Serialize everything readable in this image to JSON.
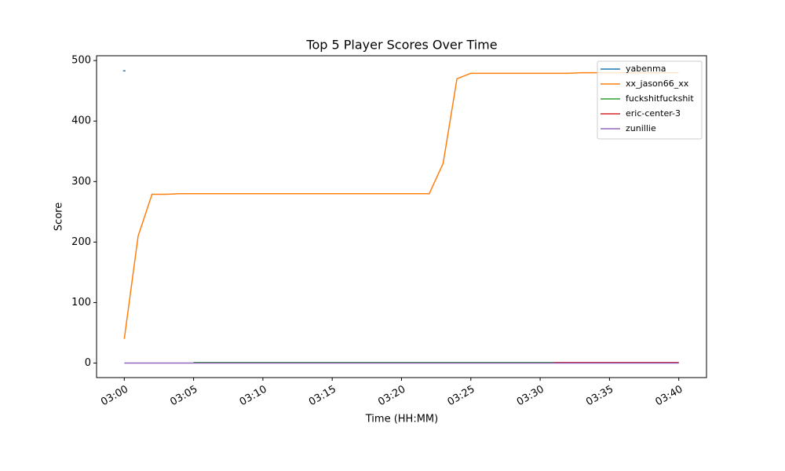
{
  "chart_data": {
    "type": "line",
    "title": "Top 5 Player Scores Over Time",
    "x_label": "Time (HH:MM)",
    "y_label": "Score",
    "x": [
      "03:00",
      "03:01",
      "03:02",
      "03:03",
      "03:04",
      "03:05",
      "03:06",
      "03:07",
      "03:08",
      "03:09",
      "03:10",
      "03:11",
      "03:12",
      "03:13",
      "03:14",
      "03:15",
      "03:16",
      "03:17",
      "03:18",
      "03:19",
      "03:20",
      "03:21",
      "03:22",
      "03:23",
      "03:24",
      "03:25",
      "03:26",
      "03:27",
      "03:28",
      "03:29",
      "03:30",
      "03:31",
      "03:32",
      "03:33",
      "03:34",
      "03:35",
      "03:36",
      "03:37",
      "03:38",
      "03:39",
      "03:40"
    ],
    "series": [
      {
        "name": "yabenma",
        "color": "#1f77b4",
        "values": [
          483,
          null,
          null,
          null,
          null,
          null,
          null,
          null,
          null,
          null,
          null,
          null,
          null,
          null,
          null,
          null,
          null,
          null,
          null,
          null,
          null,
          null,
          null,
          null,
          null,
          null,
          null,
          null,
          null,
          null,
          null,
          null,
          null,
          null,
          null,
          null,
          null,
          null,
          null,
          null,
          null
        ]
      },
      {
        "name": "xx_jason66_xx",
        "color": "#ff7f0e",
        "values": [
          40,
          210,
          279,
          279,
          280,
          280,
          280,
          280,
          280,
          280,
          280,
          280,
          280,
          280,
          280,
          280,
          280,
          280,
          280,
          280,
          280,
          280,
          280,
          330,
          470,
          479,
          479,
          479,
          479,
          479,
          479,
          479,
          479,
          480,
          480,
          480,
          480,
          480,
          480,
          480,
          480
        ]
      },
      {
        "name": "fuckshitfuckshit",
        "color": "#2ca02c",
        "values": [
          null,
          null,
          null,
          null,
          null,
          1,
          1,
          1,
          1,
          1,
          1,
          1,
          1,
          1,
          1,
          1,
          1,
          1,
          1,
          1,
          1,
          1,
          1,
          1,
          1,
          1,
          1,
          1,
          1,
          1,
          1,
          1,
          1,
          1,
          1,
          1,
          1,
          1,
          1,
          1,
          1
        ]
      },
      {
        "name": "eric-center-3",
        "color": "#d62728",
        "values": [
          null,
          null,
          null,
          null,
          null,
          null,
          null,
          null,
          null,
          null,
          null,
          null,
          null,
          null,
          null,
          null,
          null,
          null,
          null,
          null,
          null,
          null,
          null,
          null,
          null,
          null,
          null,
          null,
          null,
          null,
          null,
          1,
          1,
          1,
          1,
          1,
          1,
          1,
          1,
          1,
          1
        ]
      },
      {
        "name": "zunillie",
        "color": "#9467bd",
        "values": [
          0,
          0,
          0,
          0,
          0,
          0,
          0,
          0,
          0,
          0,
          0,
          0,
          0,
          0,
          0,
          0,
          0,
          0,
          0,
          0,
          0,
          0,
          0,
          0,
          0,
          0,
          0,
          0,
          0,
          0,
          0,
          0,
          0,
          0,
          0,
          0,
          0,
          0,
          0,
          0,
          0
        ]
      }
    ],
    "xlim": [
      "02:58",
      "03:42"
    ],
    "xticks": [
      "03:00",
      "03:05",
      "03:10",
      "03:15",
      "03:20",
      "03:25",
      "03:30",
      "03:35",
      "03:40"
    ],
    "ylim": [
      -24,
      508
    ],
    "yticks": [
      0,
      100,
      200,
      300,
      400,
      500
    ],
    "legend": "upper right"
  }
}
